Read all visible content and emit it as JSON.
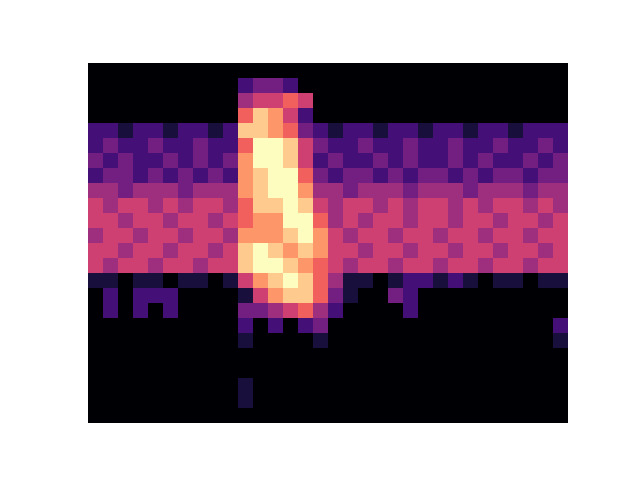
{
  "chart_data": {
    "type": "heatmap",
    "color": "magma",
    "grid": false,
    "tick_labels": false,
    "cells": [
      [
        0,
        0,
        0,
        0,
        0,
        0,
        0,
        0,
        0,
        0,
        0,
        0,
        0,
        0,
        0,
        0,
        0,
        0,
        0,
        0,
        0,
        0,
        0,
        0,
        0,
        0,
        0,
        0,
        0,
        0,
        0,
        0
      ],
      [
        0,
        0,
        0,
        0,
        0,
        0,
        0,
        0,
        0,
        0,
        2,
        3,
        3,
        2,
        0,
        0,
        0,
        0,
        0,
        0,
        0,
        0,
        0,
        0,
        0,
        0,
        0,
        0,
        0,
        0,
        0,
        0
      ],
      [
        0,
        0,
        0,
        0,
        0,
        0,
        0,
        0,
        0,
        0,
        4,
        5,
        5,
        6,
        5,
        0,
        0,
        0,
        0,
        0,
        0,
        0,
        0,
        0,
        0,
        0,
        0,
        0,
        0,
        0,
        0,
        0
      ],
      [
        0,
        0,
        0,
        0,
        0,
        0,
        0,
        0,
        0,
        0,
        6,
        8,
        7,
        5,
        2,
        0,
        0,
        0,
        0,
        0,
        0,
        0,
        0,
        0,
        0,
        0,
        0,
        0,
        0,
        0,
        0,
        0
      ],
      [
        2,
        2,
        1,
        2,
        2,
        1,
        2,
        2,
        1,
        2,
        8,
        8,
        7,
        6,
        3,
        2,
        1,
        2,
        2,
        1,
        2,
        2,
        1,
        2,
        2,
        1,
        2,
        2,
        1,
        2,
        2,
        2
      ],
      [
        2,
        3,
        2,
        2,
        3,
        2,
        2,
        3,
        2,
        2,
        6,
        9,
        9,
        8,
        5,
        3,
        2,
        2,
        3,
        2,
        2,
        3,
        2,
        2,
        3,
        2,
        2,
        3,
        2,
        2,
        3,
        2
      ],
      [
        3,
        2,
        3,
        2,
        2,
        3,
        2,
        3,
        2,
        3,
        7,
        9,
        9,
        8,
        5,
        2,
        3,
        2,
        2,
        3,
        2,
        3,
        2,
        2,
        3,
        2,
        3,
        2,
        2,
        3,
        2,
        3
      ],
      [
        2,
        3,
        3,
        2,
        3,
        2,
        3,
        2,
        3,
        2,
        7,
        8,
        9,
        9,
        6,
        3,
        2,
        3,
        3,
        2,
        3,
        2,
        3,
        3,
        2,
        3,
        2,
        3,
        3,
        2,
        3,
        3
      ],
      [
        4,
        4,
        3,
        4,
        4,
        4,
        3,
        4,
        4,
        4,
        7,
        8,
        9,
        9,
        7,
        4,
        4,
        3,
        4,
        4,
        4,
        3,
        4,
        4,
        4,
        3,
        4,
        4,
        4,
        3,
        4,
        4
      ],
      [
        5,
        4,
        5,
        5,
        4,
        5,
        4,
        5,
        5,
        4,
        6,
        8,
        8,
        9,
        8,
        5,
        4,
        5,
        5,
        4,
        5,
        4,
        5,
        5,
        4,
        5,
        4,
        5,
        5,
        4,
        5,
        4
      ],
      [
        5,
        5,
        4,
        5,
        5,
        4,
        5,
        5,
        4,
        5,
        6,
        7,
        7,
        9,
        9,
        6,
        4,
        5,
        4,
        5,
        5,
        4,
        5,
        5,
        4,
        5,
        5,
        4,
        5,
        5,
        4,
        5
      ],
      [
        4,
        5,
        5,
        4,
        5,
        5,
        4,
        5,
        5,
        4,
        7,
        7,
        7,
        8,
        9,
        7,
        5,
        4,
        5,
        5,
        4,
        5,
        5,
        4,
        5,
        5,
        4,
        5,
        5,
        4,
        5,
        5
      ],
      [
        5,
        5,
        4,
        5,
        5,
        4,
        5,
        5,
        4,
        5,
        8,
        9,
        8,
        7,
        8,
        7,
        5,
        5,
        4,
        5,
        5,
        4,
        5,
        5,
        4,
        5,
        5,
        4,
        5,
        5,
        4,
        5
      ],
      [
        5,
        4,
        5,
        5,
        4,
        5,
        5,
        4,
        5,
        5,
        8,
        9,
        9,
        8,
        7,
        6,
        5,
        4,
        5,
        5,
        4,
        5,
        5,
        4,
        5,
        5,
        4,
        5,
        5,
        4,
        5,
        5
      ],
      [
        1,
        1,
        0,
        1,
        1,
        0,
        1,
        1,
        0,
        1,
        5,
        7,
        8,
        9,
        8,
        6,
        4,
        1,
        1,
        0,
        1,
        2,
        2,
        1,
        2,
        1,
        0,
        1,
        1,
        0,
        1,
        1
      ],
      [
        0,
        2,
        0,
        2,
        2,
        2,
        0,
        0,
        0,
        0,
        1,
        5,
        7,
        8,
        8,
        6,
        3,
        1,
        0,
        0,
        3,
        2,
        0,
        0,
        0,
        0,
        0,
        0,
        0,
        0,
        0,
        0
      ],
      [
        0,
        2,
        0,
        2,
        0,
        2,
        0,
        0,
        0,
        0,
        3,
        3,
        4,
        5,
        6,
        4,
        2,
        0,
        0,
        0,
        0,
        2,
        0,
        0,
        0,
        0,
        0,
        0,
        0,
        0,
        0,
        0
      ],
      [
        0,
        0,
        0,
        0,
        0,
        0,
        0,
        0,
        0,
        0,
        2,
        0,
        2,
        0,
        2,
        3,
        0,
        0,
        0,
        0,
        0,
        0,
        0,
        0,
        0,
        0,
        0,
        0,
        0,
        0,
        0,
        2
      ],
      [
        0,
        0,
        0,
        0,
        0,
        0,
        0,
        0,
        0,
        0,
        1,
        0,
        0,
        0,
        0,
        1,
        0,
        0,
        0,
        0,
        0,
        0,
        0,
        0,
        0,
        0,
        0,
        0,
        0,
        0,
        0,
        1
      ],
      [
        0,
        0,
        0,
        0,
        0,
        0,
        0,
        0,
        0,
        0,
        0,
        0,
        0,
        0,
        0,
        0,
        0,
        0,
        0,
        0,
        0,
        0,
        0,
        0,
        0,
        0,
        0,
        0,
        0,
        0,
        0,
        0
      ],
      [
        0,
        0,
        0,
        0,
        0,
        0,
        0,
        0,
        0,
        0,
        0,
        0,
        0,
        0,
        0,
        0,
        0,
        0,
        0,
        0,
        0,
        0,
        0,
        0,
        0,
        0,
        0,
        0,
        0,
        0,
        0,
        0
      ],
      [
        0,
        0,
        0,
        0,
        0,
        0,
        0,
        0,
        0,
        0,
        1,
        0,
        0,
        0,
        0,
        0,
        0,
        0,
        0,
        0,
        0,
        0,
        0,
        0,
        0,
        0,
        0,
        0,
        0,
        0,
        0,
        0
      ],
      [
        0,
        0,
        0,
        0,
        0,
        0,
        0,
        0,
        0,
        0,
        1,
        0,
        0,
        0,
        0,
        0,
        0,
        0,
        0,
        0,
        0,
        0,
        0,
        0,
        0,
        0,
        0,
        0,
        0,
        0,
        0,
        0
      ],
      [
        0,
        0,
        0,
        0,
        0,
        0,
        0,
        0,
        0,
        0,
        0,
        0,
        0,
        0,
        0,
        0,
        0,
        0,
        0,
        0,
        0,
        0,
        0,
        0,
        0,
        0,
        0,
        0,
        0,
        0,
        0,
        0
      ]
    ]
  }
}
